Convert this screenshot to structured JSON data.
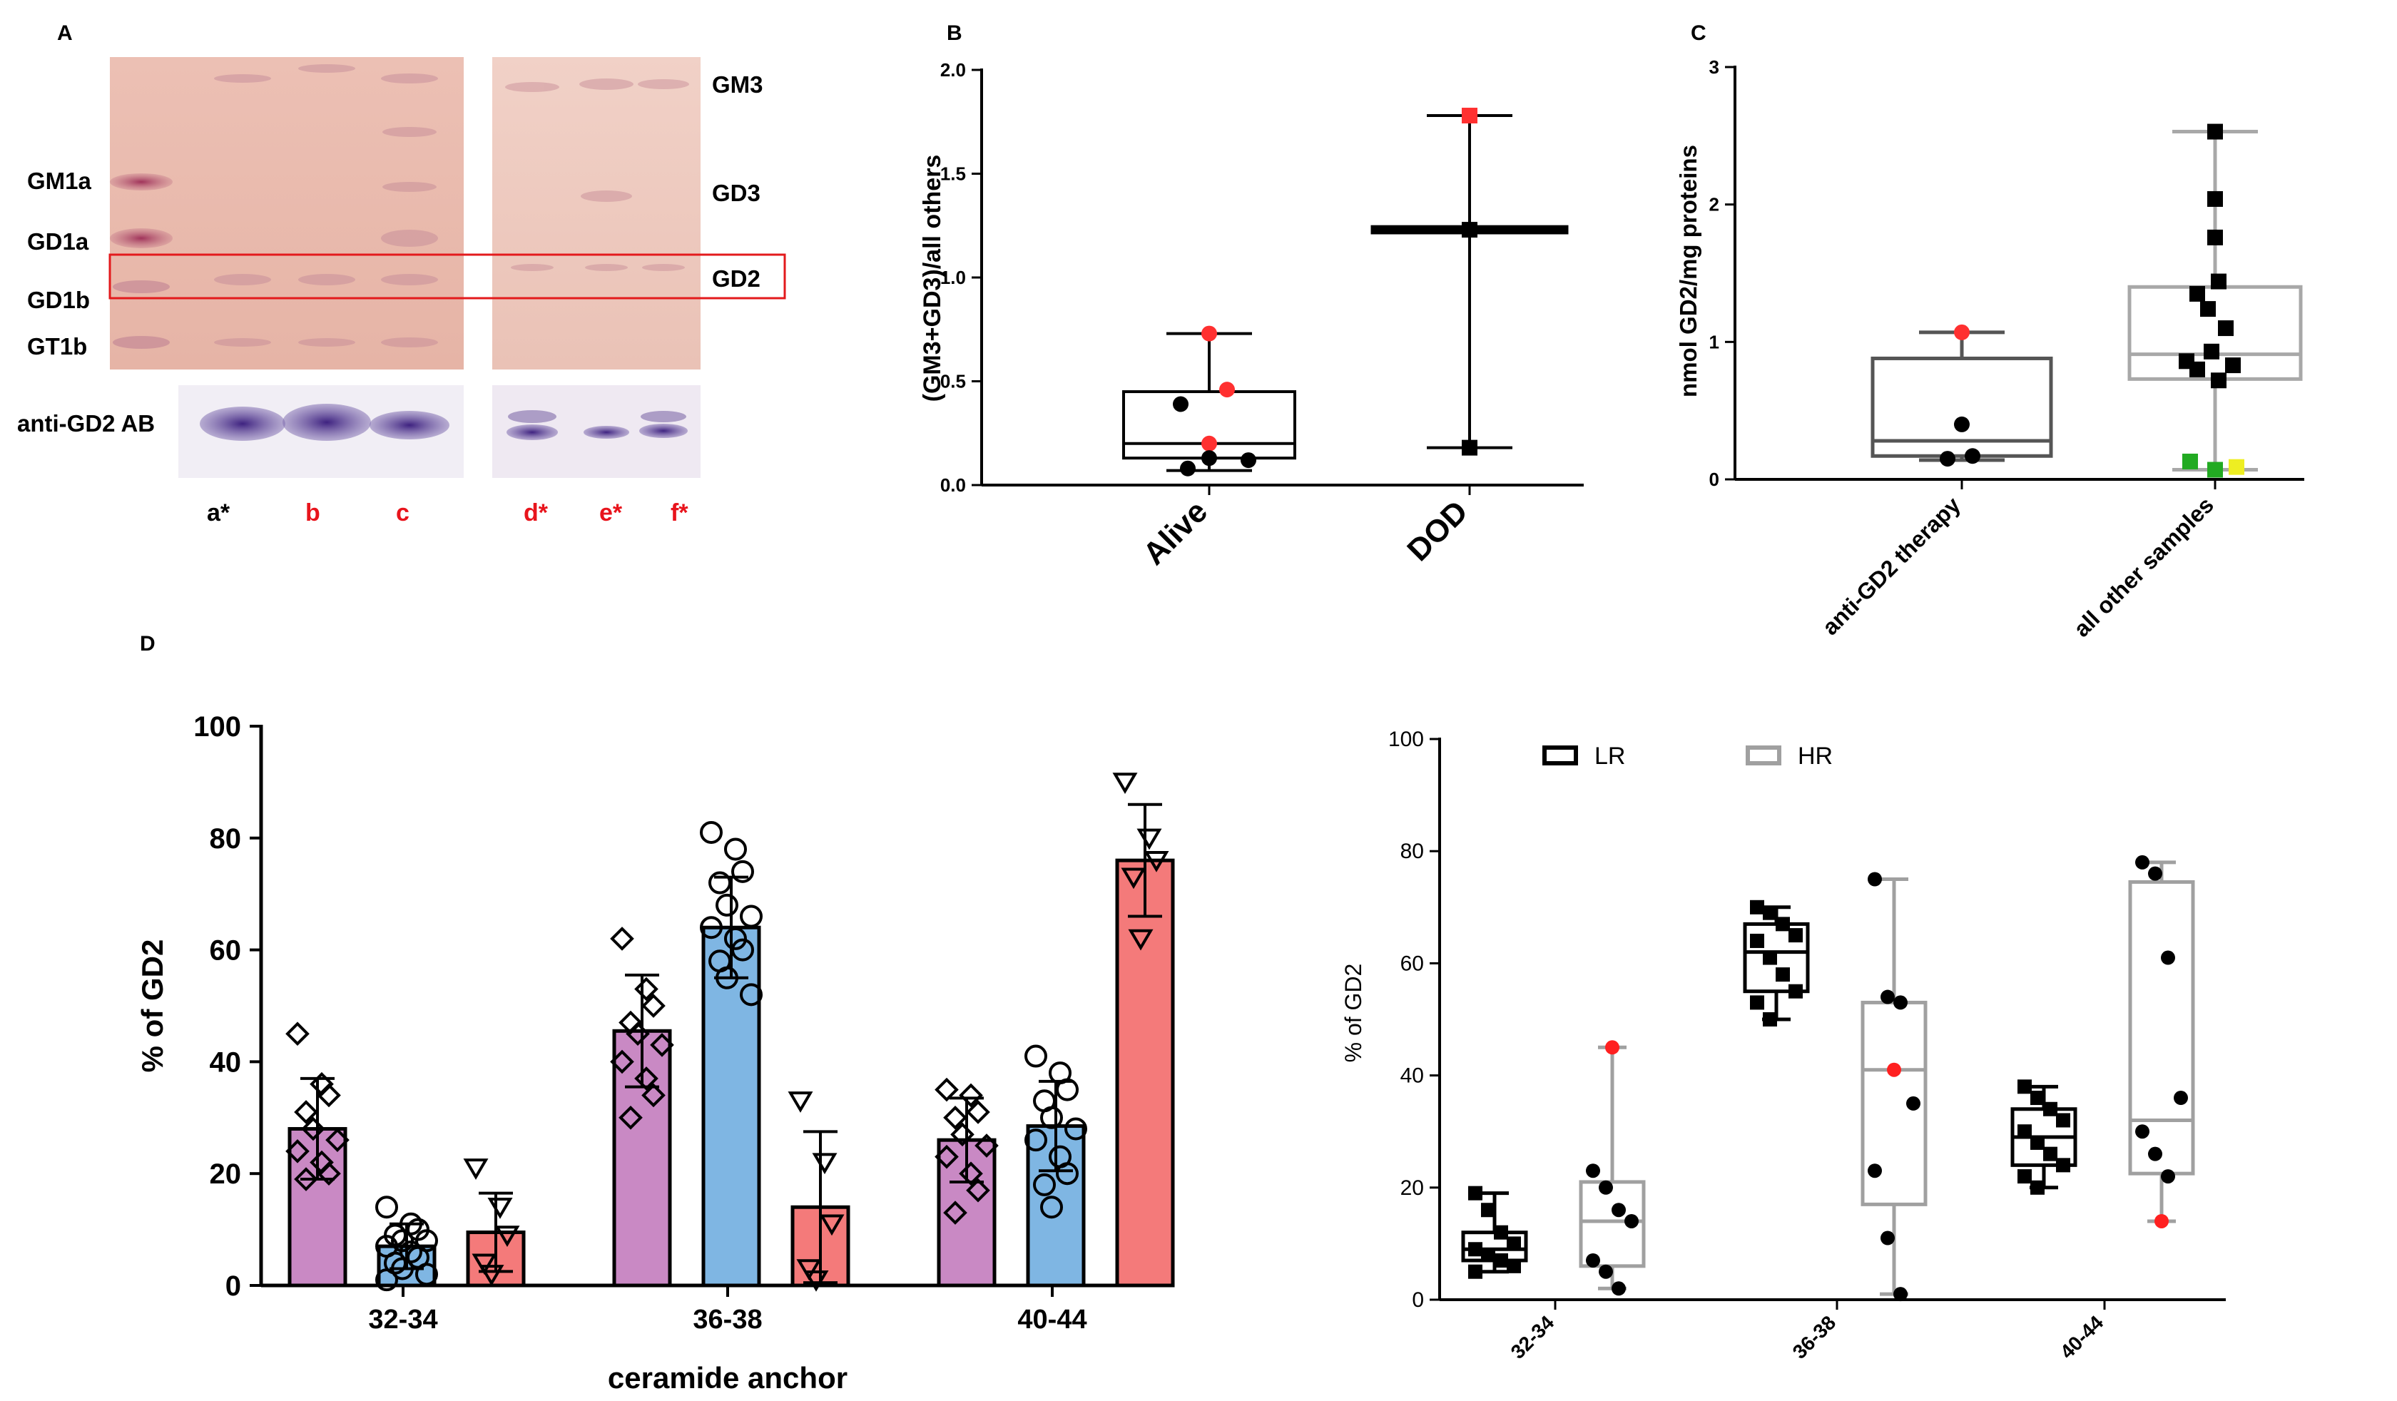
{
  "panels": {
    "A": {
      "letter": "A",
      "left_labels": [
        "GM1a",
        "GD1a",
        "GD1b",
        "GT1b"
      ],
      "right_labels": [
        "GM3",
        "GD3",
        "GD2"
      ],
      "antibody_label": "anti-GD2 AB",
      "lanes": [
        {
          "label": "a*",
          "color": "#000000"
        },
        {
          "label": "b",
          "color": "#e8141c"
        },
        {
          "label": "c",
          "color": "#e8141c"
        },
        {
          "label": "d*",
          "color": "#e8141c"
        },
        {
          "label": "e*",
          "color": "#e8141c"
        },
        {
          "label": "f*",
          "color": "#e8141c"
        }
      ],
      "colors": {
        "gel": "#e9b9ad",
        "highlight_box": "#e31a1c",
        "band": "#b0486a",
        "ab_band": "#4f2d8a"
      }
    },
    "B": {
      "letter": "B"
    },
    "C": {
      "letter": "C"
    },
    "D": {
      "letter": "D"
    }
  },
  "chart_data": [
    {
      "id": "B",
      "type": "box",
      "title": "",
      "xlabel": "",
      "ylabel": "(GM3+GD3)/all others",
      "ylim": [
        0,
        2.0
      ],
      "yticks": [
        "0.0",
        "0.5",
        "1.0",
        "1.5",
        "2.0"
      ],
      "yticks_values": [
        0,
        0.5,
        1.0,
        1.5,
        2.0
      ],
      "categories": [
        "Alive",
        "DOD"
      ],
      "boxes": [
        {
          "category": "Alive",
          "min": 0.07,
          "q1": 0.13,
          "median": 0.2,
          "q3": 0.45,
          "max": 0.73
        },
        {
          "category": "DOD",
          "min": 0.18,
          "q1": 1.22,
          "median": 1.23,
          "q3": 1.24,
          "max": 1.78
        }
      ],
      "points": [
        {
          "category": "Alive",
          "y": 0.73,
          "color": "#ff3030",
          "shape": "circle"
        },
        {
          "category": "Alive",
          "y": 0.46,
          "color": "#ff3030",
          "shape": "circle"
        },
        {
          "category": "Alive",
          "y": 0.39,
          "color": "#000000",
          "shape": "circle"
        },
        {
          "category": "Alive",
          "y": 0.2,
          "color": "#ff3030",
          "shape": "circle"
        },
        {
          "category": "Alive",
          "y": 0.13,
          "color": "#000000",
          "shape": "circle"
        },
        {
          "category": "Alive",
          "y": 0.08,
          "color": "#000000",
          "shape": "circle"
        },
        {
          "category": "Alive",
          "y": 0.12,
          "color": "#000000",
          "shape": "circle"
        },
        {
          "category": "DOD",
          "y": 1.78,
          "color": "#ff3030",
          "shape": "square"
        },
        {
          "category": "DOD",
          "y": 1.23,
          "color": "#000000",
          "shape": "square"
        },
        {
          "category": "DOD",
          "y": 0.18,
          "color": "#000000",
          "shape": "square"
        }
      ]
    },
    {
      "id": "C",
      "type": "box",
      "title": "",
      "xlabel": "",
      "ylabel": "nmol GD2/mg proteins",
      "ylim": [
        0,
        3
      ],
      "yticks": [
        "0",
        "1",
        "2",
        "3"
      ],
      "yticks_values": [
        0,
        1,
        2,
        3
      ],
      "categories": [
        "anti-GD2 therapy",
        "all other samples"
      ],
      "boxes": [
        {
          "category": "anti-GD2 therapy",
          "min": 0.14,
          "q1": 0.17,
          "median": 0.28,
          "q3": 0.88,
          "max": 1.07
        },
        {
          "category": "all other samples",
          "min": 0.07,
          "q1": 0.73,
          "median": 0.91,
          "q3": 1.4,
          "max": 2.53
        }
      ],
      "points": [
        {
          "category": "anti-GD2 therapy",
          "dx": 0,
          "y": 1.07,
          "color": "#ff3030",
          "shape": "circle"
        },
        {
          "category": "anti-GD2 therapy",
          "dx": 0,
          "y": 0.4,
          "color": "#000000",
          "shape": "circle"
        },
        {
          "category": "anti-GD2 therapy",
          "dx": -0.2,
          "y": 0.15,
          "color": "#000000",
          "shape": "circle"
        },
        {
          "category": "anti-GD2 therapy",
          "dx": 0.15,
          "y": 0.17,
          "color": "#000000",
          "shape": "circle"
        },
        {
          "category": "all other samples",
          "dx": 0,
          "y": 2.53,
          "color": "#000000",
          "shape": "square"
        },
        {
          "category": "all other samples",
          "dx": 0,
          "y": 2.04,
          "color": "#000000",
          "shape": "square"
        },
        {
          "category": "all other samples",
          "dx": 0,
          "y": 1.76,
          "color": "#000000",
          "shape": "square"
        },
        {
          "category": "all other samples",
          "dx": -0.25,
          "y": 1.35,
          "color": "#000000",
          "shape": "square"
        },
        {
          "category": "all other samples",
          "dx": 0.05,
          "y": 1.44,
          "color": "#000000",
          "shape": "square"
        },
        {
          "category": "all other samples",
          "dx": -0.1,
          "y": 1.24,
          "color": "#000000",
          "shape": "square"
        },
        {
          "category": "all other samples",
          "dx": 0.15,
          "y": 1.1,
          "color": "#000000",
          "shape": "square"
        },
        {
          "category": "all other samples",
          "dx": -0.4,
          "y": 0.86,
          "color": "#000000",
          "shape": "square"
        },
        {
          "category": "all other samples",
          "dx": -0.05,
          "y": 0.93,
          "color": "#000000",
          "shape": "square"
        },
        {
          "category": "all other samples",
          "dx": -0.25,
          "y": 0.8,
          "color": "#000000",
          "shape": "square"
        },
        {
          "category": "all other samples",
          "dx": 0.25,
          "y": 0.83,
          "color": "#000000",
          "shape": "square"
        },
        {
          "category": "all other samples",
          "dx": 0.05,
          "y": 0.72,
          "color": "#000000",
          "shape": "square"
        },
        {
          "category": "all other samples",
          "dx": -0.35,
          "y": 0.13,
          "color": "#22aa22",
          "shape": "square"
        },
        {
          "category": "all other samples",
          "dx": 0,
          "y": 0.07,
          "color": "#22aa22",
          "shape": "square"
        },
        {
          "category": "all other samples",
          "dx": 0.3,
          "y": 0.09,
          "color": "#eeee22",
          "shape": "square"
        }
      ]
    },
    {
      "id": "D-bar",
      "type": "bar",
      "title": "",
      "xlabel": "ceramide anchor",
      "ylabel": "% of GD2",
      "ylim": [
        0,
        100
      ],
      "yticks": [
        "0",
        "20",
        "40",
        "60",
        "80",
        "100"
      ],
      "yticks_values": [
        0,
        20,
        40,
        60,
        80,
        100
      ],
      "categories": [
        "32-34",
        "36-38",
        "40-44"
      ],
      "series": [
        {
          "name": "purple",
          "color": "#c989c4",
          "marker": "diamond",
          "values": [
            28,
            45.5,
            26
          ],
          "errors": [
            9,
            10,
            7.5
          ],
          "points": [
            [
              45,
              36,
              34,
              31,
              28,
              26,
              24,
              22,
              20,
              19
            ],
            [
              62,
              53,
              50,
              47,
              45,
              43,
              40,
              37,
              34,
              30
            ],
            [
              35,
              34,
              31,
              30,
              27,
              25,
              23,
              20,
              17,
              13
            ]
          ]
        },
        {
          "name": "blue",
          "color": "#7fb6e3",
          "marker": "circle",
          "values": [
            7,
            64,
            28.5
          ],
          "errors": [
            4,
            9,
            8
          ],
          "points": [
            [
              14,
              11,
              10,
              9,
              8,
              8,
              7,
              6,
              5,
              4,
              3,
              2,
              1
            ],
            [
              81,
              78,
              74,
              72,
              68,
              66,
              64,
              62,
              60,
              58,
              55,
              52
            ],
            [
              41,
              38,
              35,
              33,
              30,
              28,
              26,
              23,
              20,
              18,
              14
            ]
          ]
        },
        {
          "name": "red",
          "color": "#f47a7a",
          "marker": "triangle-down",
          "values": [
            9.5,
            14,
            76
          ],
          "errors": [
            7,
            13.5,
            10
          ],
          "points": [
            [
              21,
              14,
              9,
              4,
              2
            ],
            [
              33,
              22,
              11,
              3,
              1
            ],
            [
              90,
              80,
              76,
              73,
              62
            ]
          ]
        }
      ]
    },
    {
      "id": "D-box",
      "type": "box",
      "title": "",
      "xlabel": "",
      "ylabel": "% of GD2",
      "ylim": [
        0,
        100
      ],
      "yticks": [
        "0",
        "20",
        "40",
        "60",
        "80",
        "100"
      ],
      "yticks_values": [
        0,
        20,
        40,
        60,
        80,
        100
      ],
      "categories": [
        "32-34",
        "36-38",
        "40-44"
      ],
      "legend": [
        {
          "label": "LR",
          "color": "#000000"
        },
        {
          "label": "HR",
          "color": "#a0a0a0"
        }
      ],
      "boxes": [
        {
          "category": "32-34",
          "group": "LR",
          "min": 5,
          "q1": 7,
          "median": 9,
          "q3": 12,
          "max": 19
        },
        {
          "category": "32-34",
          "group": "HR",
          "min": 2,
          "q1": 6,
          "median": 14,
          "q3": 21,
          "max": 45
        },
        {
          "category": "36-38",
          "group": "LR",
          "min": 50,
          "q1": 55,
          "median": 62,
          "q3": 67,
          "max": 70
        },
        {
          "category": "36-38",
          "group": "HR",
          "min": 1,
          "q1": 17,
          "median": 41,
          "q3": 53,
          "max": 75
        },
        {
          "category": "40-44",
          "group": "LR",
          "min": 20,
          "q1": 24,
          "median": 29,
          "q3": 34,
          "max": 38
        },
        {
          "category": "40-44",
          "group": "HR",
          "min": 14,
          "q1": 22.5,
          "median": 32,
          "q3": 74.5,
          "max": 78
        }
      ],
      "points": [
        {
          "category": "32-34",
          "group": "LR",
          "shape": "square",
          "color": "#000000",
          "values": [
            19,
            16,
            12,
            10,
            9,
            8,
            7,
            6,
            5
          ]
        },
        {
          "category": "32-34",
          "group": "HR",
          "shape": "circle",
          "color": "#000000",
          "values": [
            23,
            20,
            16,
            14,
            7,
            5,
            2
          ]
        },
        {
          "category": "32-34",
          "group": "HR",
          "shape": "circle",
          "color": "#ff2020",
          "values": [
            45
          ]
        },
        {
          "category": "36-38",
          "group": "LR",
          "shape": "square",
          "color": "#000000",
          "values": [
            70,
            69,
            67,
            65,
            64,
            61,
            58,
            55,
            53,
            50
          ]
        },
        {
          "category": "36-38",
          "group": "HR",
          "shape": "circle",
          "color": "#000000",
          "values": [
            75,
            54,
            53,
            35,
            23,
            11,
            1
          ]
        },
        {
          "category": "36-38",
          "group": "HR",
          "shape": "circle",
          "color": "#ff2020",
          "values": [
            41
          ]
        },
        {
          "category": "40-44",
          "group": "LR",
          "shape": "square",
          "color": "#000000",
          "values": [
            38,
            36,
            34,
            32,
            30,
            28,
            26,
            24,
            22,
            20
          ]
        },
        {
          "category": "40-44",
          "group": "HR",
          "shape": "circle",
          "color": "#000000",
          "values": [
            78,
            76,
            61,
            36,
            30,
            26,
            22
          ]
        },
        {
          "category": "40-44",
          "group": "HR",
          "shape": "circle",
          "color": "#ff2020",
          "values": [
            14
          ]
        }
      ]
    }
  ]
}
